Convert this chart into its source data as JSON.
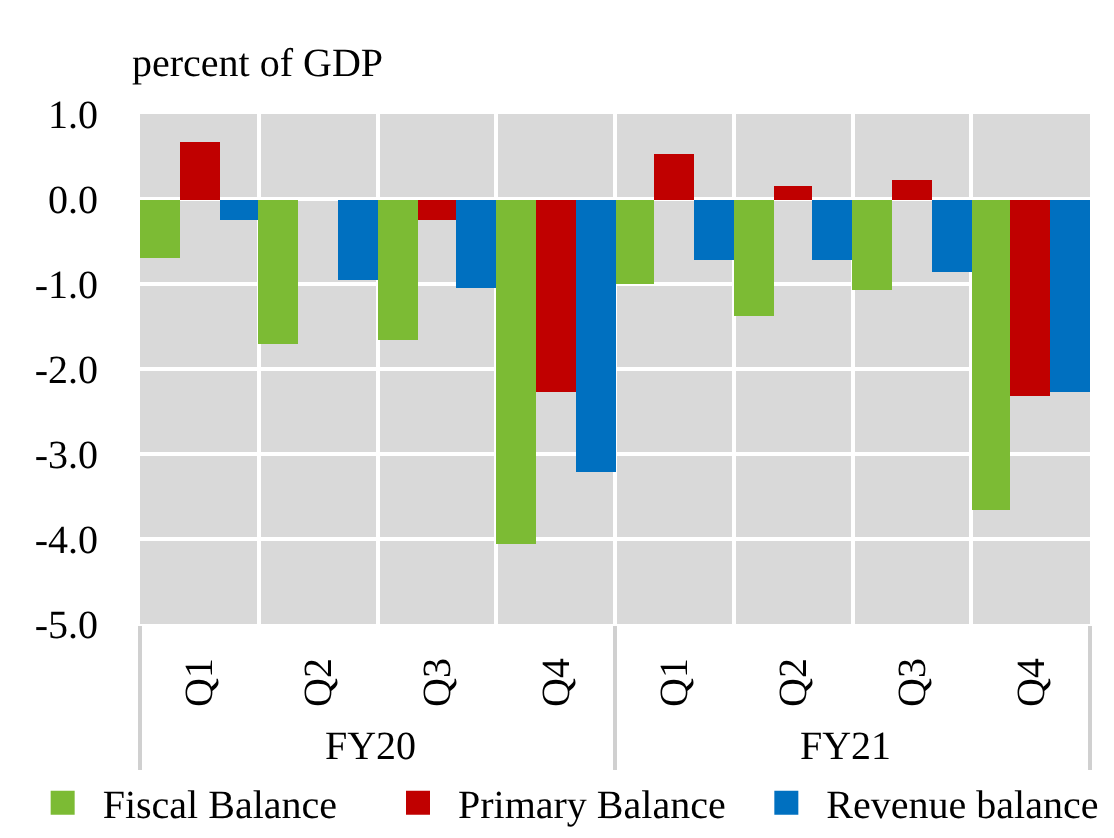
{
  "chart_data": {
    "type": "bar",
    "ylabel": "percent of GDP",
    "categories": [
      "Q1",
      "Q2",
      "Q3",
      "Q4",
      "Q1",
      "Q2",
      "Q3",
      "Q4"
    ],
    "annotations": [
      "FY20",
      "FY21"
    ],
    "series": [
      {
        "name": "Fiscal Balance",
        "color": "#7cbb34",
        "values": [
          -0.7,
          -1.7,
          -1.66,
          -4.05,
          -1.01,
          -1.37,
          -1.08,
          -3.66
        ]
      },
      {
        "name": "Primary Balance",
        "color": "#c00000",
        "values": [
          0.67,
          0,
          -0.24,
          -2.28,
          0.54,
          0.16,
          0.23,
          -2.32
        ]
      },
      {
        "name": "Revenue balance",
        "color": "#0070c0",
        "values": [
          -0.24,
          -0.95,
          -1.04,
          -3.21,
          -0.71,
          -0.72,
          -0.87,
          -2.27
        ]
      }
    ],
    "ylim": [
      -5,
      1
    ],
    "yticks": [
      {
        "value": -5,
        "label": "-5.0"
      },
      {
        "value": -4,
        "label": "-4.0"
      },
      {
        "value": -3,
        "label": "-3.0"
      },
      {
        "value": -2,
        "label": "-2.0"
      },
      {
        "value": -1,
        "label": "-1.0"
      },
      {
        "value": 0,
        "label": "0.0"
      },
      {
        "value": 1,
        "label": "1.0"
      }
    ],
    "grid": true,
    "legend": "bottom"
  }
}
